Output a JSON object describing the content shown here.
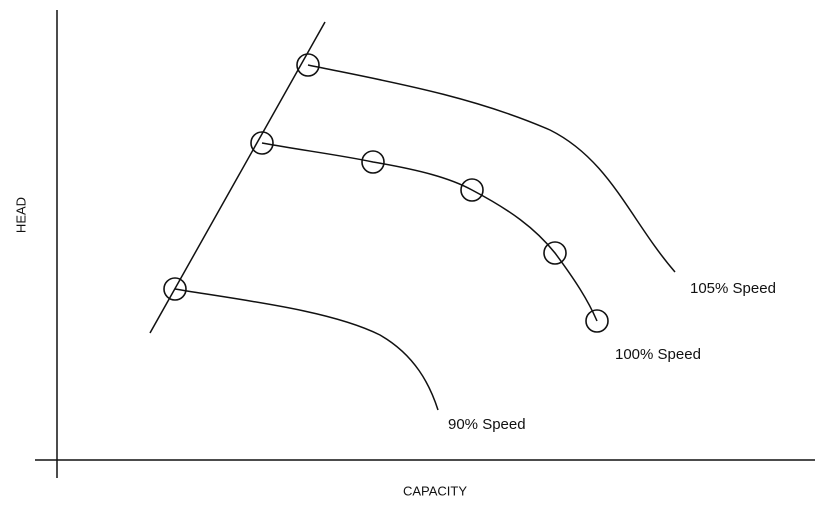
{
  "axes": {
    "y_label": "HEAD",
    "x_label": "CAPACITY"
  },
  "curves": [
    {
      "label": "105% Speed"
    },
    {
      "label": "100% Speed"
    },
    {
      "label": "90% Speed"
    }
  ]
}
